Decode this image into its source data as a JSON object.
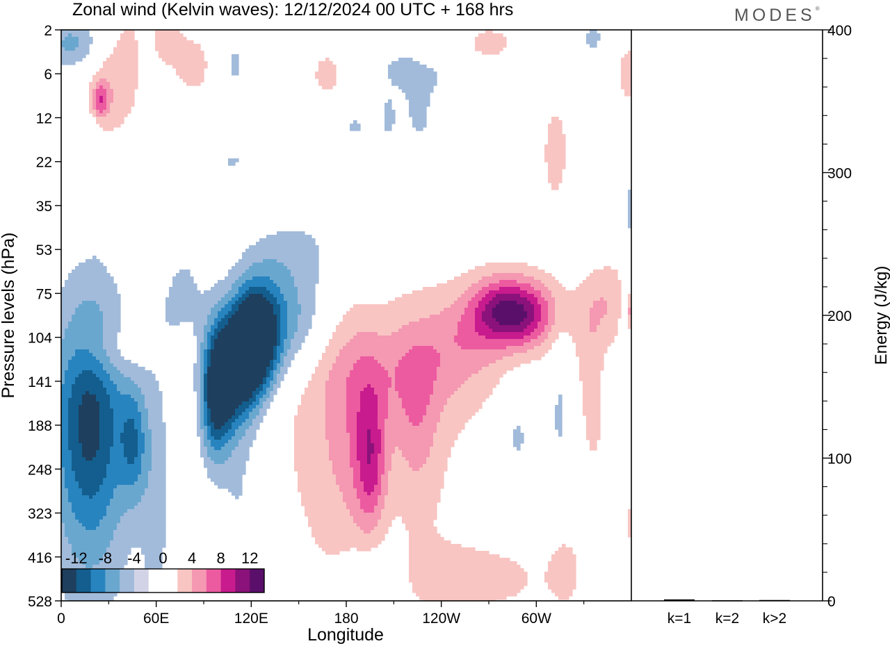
{
  "header": {
    "title": "Zonal wind (Kelvin waves):  12/12/2024  00 UTC  + 168 hrs",
    "brand": "MODES",
    "brand_mark": "®"
  },
  "colors": {
    "neg": [
      "#1e3f5e",
      "#135e8e",
      "#2884bf",
      "#6aa7cf",
      "#a2bbdb",
      "#d2d3e6"
    ],
    "zero": "#ffffff",
    "pos": [
      "#f8c5c2",
      "#f598b2",
      "#ec5ba0",
      "#c81b8d",
      "#8a127a",
      "#5a0f6b"
    ]
  },
  "chart_data": [
    {
      "type": "heatmap",
      "title": "",
      "xlabel": "Longitude",
      "ylabel": "Pressure levels (hPa)",
      "x_ticks": [
        "0",
        "60E",
        "120E",
        "180",
        "120W",
        "60W"
      ],
      "y_ticks": [
        "2",
        "6",
        "12",
        "22",
        "35",
        "53",
        "75",
        "104",
        "141",
        "188",
        "248",
        "323",
        "416",
        "528"
      ],
      "colorbar": {
        "labels": [
          "-12",
          "-8",
          "-4",
          "0",
          "4",
          "8",
          "12"
        ],
        "levels": [
          -12,
          -10,
          -8,
          -6,
          -4,
          -2,
          2,
          4,
          6,
          8,
          10,
          12
        ]
      },
      "blobs": [
        {
          "lon": 15,
          "lev": 8.7,
          "dl": 14,
          "dv": 1.9,
          "amp": -9
        },
        {
          "lon": 15,
          "lev": 11.0,
          "dl": 16,
          "dv": 2.6,
          "amp": -2.7
        },
        {
          "lon": 38,
          "lev": 9.4,
          "dl": 5,
          "dv": 0.9,
          "amp": -5.5
        },
        {
          "lon": 85,
          "lev": 7.9,
          "dl": 7,
          "dv": 1.0,
          "amp": -12
        },
        {
          "lon": 97,
          "lev": 7.4,
          "dl": 7,
          "dv": 0.9,
          "amp": -11
        },
        {
          "lon": 105,
          "lev": 7.0,
          "dl": 8,
          "dv": 0.9,
          "amp": -10
        },
        {
          "lon": 120,
          "lev": 6.6,
          "dl": 16,
          "dv": 0.9,
          "amp": -5.5
        },
        {
          "lon": 80,
          "lev": 8.6,
          "dl": 5,
          "dv": 1.0,
          "amp": -5
        },
        {
          "lon": 62,
          "lev": 6.0,
          "dl": 10,
          "dv": 0.8,
          "amp": -2.8
        },
        {
          "lon": 125,
          "lev": 5.0,
          "dl": 18,
          "dv": 0.6,
          "amp": -2.6
        },
        {
          "lon": 50,
          "lev": 10.5,
          "dl": 6,
          "dv": 2.5,
          "amp": -2.6
        },
        {
          "lon": 95,
          "lev": 10.8,
          "dl": 9,
          "dv": 1.8,
          "amp": -2.4
        },
        {
          "lon": 163,
          "lev": 12.6,
          "dl": 11,
          "dv": 0.6,
          "amp": -2.5
        },
        {
          "lon": 240,
          "lev": 9.2,
          "dl": 6,
          "dv": 0.8,
          "amp": -2.6
        },
        {
          "lon": 262,
          "lev": 8.7,
          "dl": 3,
          "dv": 1.0,
          "amp": -2.5
        },
        {
          "lon": 300,
          "lev": 4.1,
          "dl": 3,
          "dv": 0.8,
          "amp": -2.5
        },
        {
          "lon": 297,
          "lev": 6.3,
          "dl": 3,
          "dv": 0.5,
          "amp": -2.4
        },
        {
          "lon": 5,
          "lev": 0.3,
          "dl": 10,
          "dv": 0.4,
          "amp": -4.5
        },
        {
          "lon": 90,
          "lev": 0.8,
          "dl": 7,
          "dv": 0.6,
          "amp": -2.5
        },
        {
          "lon": 185,
          "lev": 0.9,
          "dl": 18,
          "dv": 0.4,
          "amp": -2.4
        },
        {
          "lon": 155,
          "lev": 2.2,
          "dl": 8,
          "dv": 0.3,
          "amp": -2.3
        },
        {
          "lon": 90,
          "lev": 3.0,
          "dl": 7,
          "dv": 0.2,
          "amp": -2.2
        },
        {
          "lon": 280,
          "lev": 0.2,
          "dl": 6,
          "dv": 0.4,
          "amp": -2.3
        },
        {
          "lon": 188,
          "lev": 2.0,
          "dl": 8,
          "dv": 0.8,
          "amp": -2.3
        },
        {
          "lon": 18,
          "lev": 2.6,
          "dl": 3,
          "dv": 1.2,
          "amp": -2.2
        },
        {
          "lon": 172,
          "lev": 2.0,
          "dl": 3,
          "dv": 0.4,
          "amp": -2.2
        },
        {
          "lon": 165,
          "lev": 9.5,
          "dl": 11,
          "dv": 2.2,
          "amp": -5
        },
        {
          "lon": 182,
          "lev": 7.7,
          "dl": 33,
          "dv": 0.9,
          "amp": 3.5
        },
        {
          "lon": 240,
          "lev": 6.3,
          "dl": 20,
          "dv": 0.7,
          "amp": 3.5
        },
        {
          "lon": 230,
          "lev": 6.4,
          "dl": 10,
          "dv": 0.5,
          "amp": 6
        },
        {
          "lon": 245,
          "lev": 6.5,
          "dl": 10,
          "dv": 0.5,
          "amp": 6
        },
        {
          "lon": 160,
          "lev": 9.3,
          "dl": 35,
          "dv": 2.8,
          "amp": 3.5
        },
        {
          "lon": 160,
          "lev": 9.3,
          "dl": 12,
          "dv": 1.8,
          "amp": 4.6
        },
        {
          "lon": 163,
          "lev": 9.8,
          "dl": 6,
          "dv": 1.2,
          "amp": 7
        },
        {
          "lon": 215,
          "lev": 6.9,
          "dl": 15,
          "dv": 0.7,
          "amp": 2.6
        },
        {
          "lon": 187,
          "lev": 9.0,
          "dl": 8,
          "dv": 1.2,
          "amp": 2.5
        },
        {
          "lon": 290,
          "lev": 6.2,
          "dl": 10,
          "dv": 0.7,
          "amp": 3.5
        },
        {
          "lon": 278,
          "lev": 7.3,
          "dl": 6,
          "dv": 1.0,
          "amp": 2.6
        },
        {
          "lon": 302,
          "lev": 6.4,
          "dl": 3,
          "dv": 0.3,
          "amp": 6
        },
        {
          "lon": 25,
          "lev": 7.3,
          "dl": 12,
          "dv": 0.5,
          "amp": 2.7
        },
        {
          "lon": 50,
          "lev": 5.0,
          "dl": 6,
          "dv": 0.8,
          "amp": 2.7
        },
        {
          "lon": 35,
          "lev": 0.8,
          "dl": 6,
          "dv": 1.0,
          "amp": 2.8
        },
        {
          "lon": 22,
          "lev": 1.5,
          "dl": 7,
          "dv": 0.8,
          "amp": 3.5
        },
        {
          "lon": 20,
          "lev": 1.6,
          "dl": 3,
          "dv": 0.3,
          "amp": 6
        },
        {
          "lon": 70,
          "lev": 0.8,
          "dl": 10,
          "dv": 0.6,
          "amp": 2.8
        },
        {
          "lon": 55,
          "lev": 0.2,
          "dl": 6,
          "dv": 0.4,
          "amp": 2.6
        },
        {
          "lon": 140,
          "lev": 1.0,
          "dl": 8,
          "dv": 0.5,
          "amp": 2.6
        },
        {
          "lon": 193,
          "lev": 0.4,
          "dl": 6,
          "dv": 0.3,
          "amp": 2.4
        },
        {
          "lon": 225,
          "lev": 0.3,
          "dl": 10,
          "dv": 0.3,
          "amp": 3
        },
        {
          "lon": 260,
          "lev": 2.8,
          "dl": 6,
          "dv": 1.0,
          "amp": 2.8
        },
        {
          "lon": 300,
          "lev": 1.0,
          "dl": 7,
          "dv": 0.6,
          "amp": 3
        },
        {
          "lon": 302,
          "lev": 11.2,
          "dl": 4,
          "dv": 0.8,
          "amp": 2.8
        },
        {
          "lon": 220,
          "lev": 12.5,
          "dl": 30,
          "dv": 0.6,
          "amp": 2.7
        },
        {
          "lon": 265,
          "lev": 12.3,
          "dl": 6,
          "dv": 0.6,
          "amp": 2.5
        },
        {
          "lon": 280,
          "lev": 9.0,
          "dl": 4,
          "dv": 0.8,
          "amp": 2.4
        }
      ]
    },
    {
      "type": "bar",
      "title": "",
      "ylabel": "Energy (J/kg)",
      "categories": [
        "k=1",
        "k=2",
        "k>2"
      ],
      "values": [
        1.0,
        0.4,
        0.6
      ],
      "ylim": [
        0,
        400
      ],
      "y_ticks": [
        "0",
        "100",
        "200",
        "300",
        "400"
      ]
    }
  ]
}
